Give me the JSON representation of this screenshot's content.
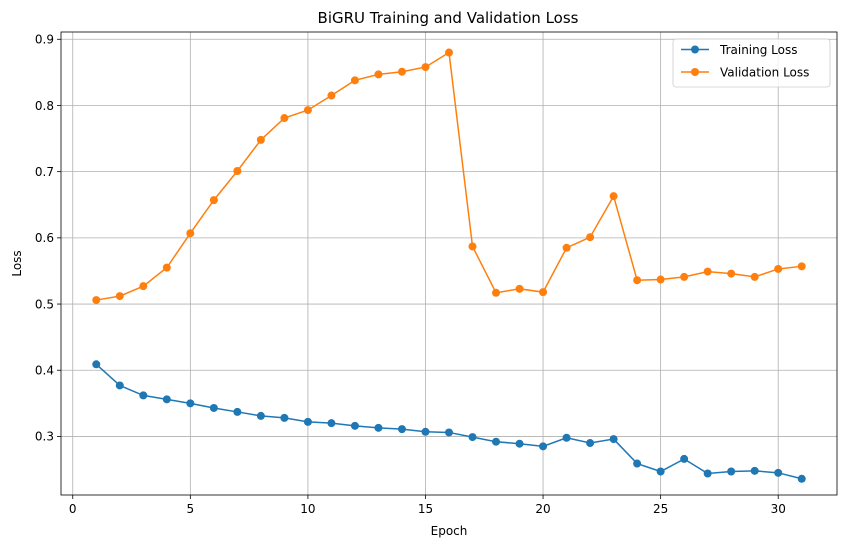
{
  "chart_data": {
    "type": "line",
    "title": "BiGRU Training and Validation Loss",
    "xlabel": "Epoch",
    "ylabel": "Loss",
    "xlim": [
      -0.5,
      32.5
    ],
    "ylim": [
      0.2115,
      0.911
    ],
    "xticks": [
      0,
      5,
      10,
      15,
      20,
      25,
      30
    ],
    "yticks": [
      0.3,
      0.4,
      0.5,
      0.6,
      0.7,
      0.8,
      0.9
    ],
    "xtick_labels": [
      "0",
      "5",
      "10",
      "15",
      "20",
      "25",
      "30"
    ],
    "ytick_labels": [
      "0.3",
      "0.4",
      "0.5",
      "0.6",
      "0.7",
      "0.8",
      "0.9"
    ],
    "grid": true,
    "legend_position": "top-right",
    "x": [
      1,
      2,
      3,
      4,
      5,
      6,
      7,
      8,
      9,
      10,
      11,
      12,
      13,
      14,
      15,
      16,
      17,
      18,
      19,
      20,
      21,
      22,
      23,
      24,
      25,
      26,
      27,
      28,
      29,
      30,
      31
    ],
    "series": [
      {
        "name": "Training Loss",
        "color": "#1f77b4",
        "values": [
          0.409,
          0.377,
          0.362,
          0.356,
          0.35,
          0.343,
          0.337,
          0.331,
          0.328,
          0.322,
          0.32,
          0.316,
          0.313,
          0.311,
          0.307,
          0.306,
          0.299,
          0.292,
          0.289,
          0.285,
          0.298,
          0.29,
          0.296,
          0.259,
          0.247,
          0.266,
          0.244,
          0.247,
          0.248,
          0.245,
          0.236
        ]
      },
      {
        "name": "Validation Loss",
        "color": "#ff7f0e",
        "values": [
          0.506,
          0.512,
          0.527,
          0.555,
          0.607,
          0.657,
          0.701,
          0.748,
          0.781,
          0.793,
          0.815,
          0.838,
          0.847,
          0.851,
          0.858,
          0.88,
          0.587,
          0.517,
          0.523,
          0.518,
          0.585,
          0.601,
          0.663,
          0.536,
          0.537,
          0.541,
          0.549,
          0.546,
          0.541,
          0.553,
          0.557
        ]
      }
    ]
  }
}
